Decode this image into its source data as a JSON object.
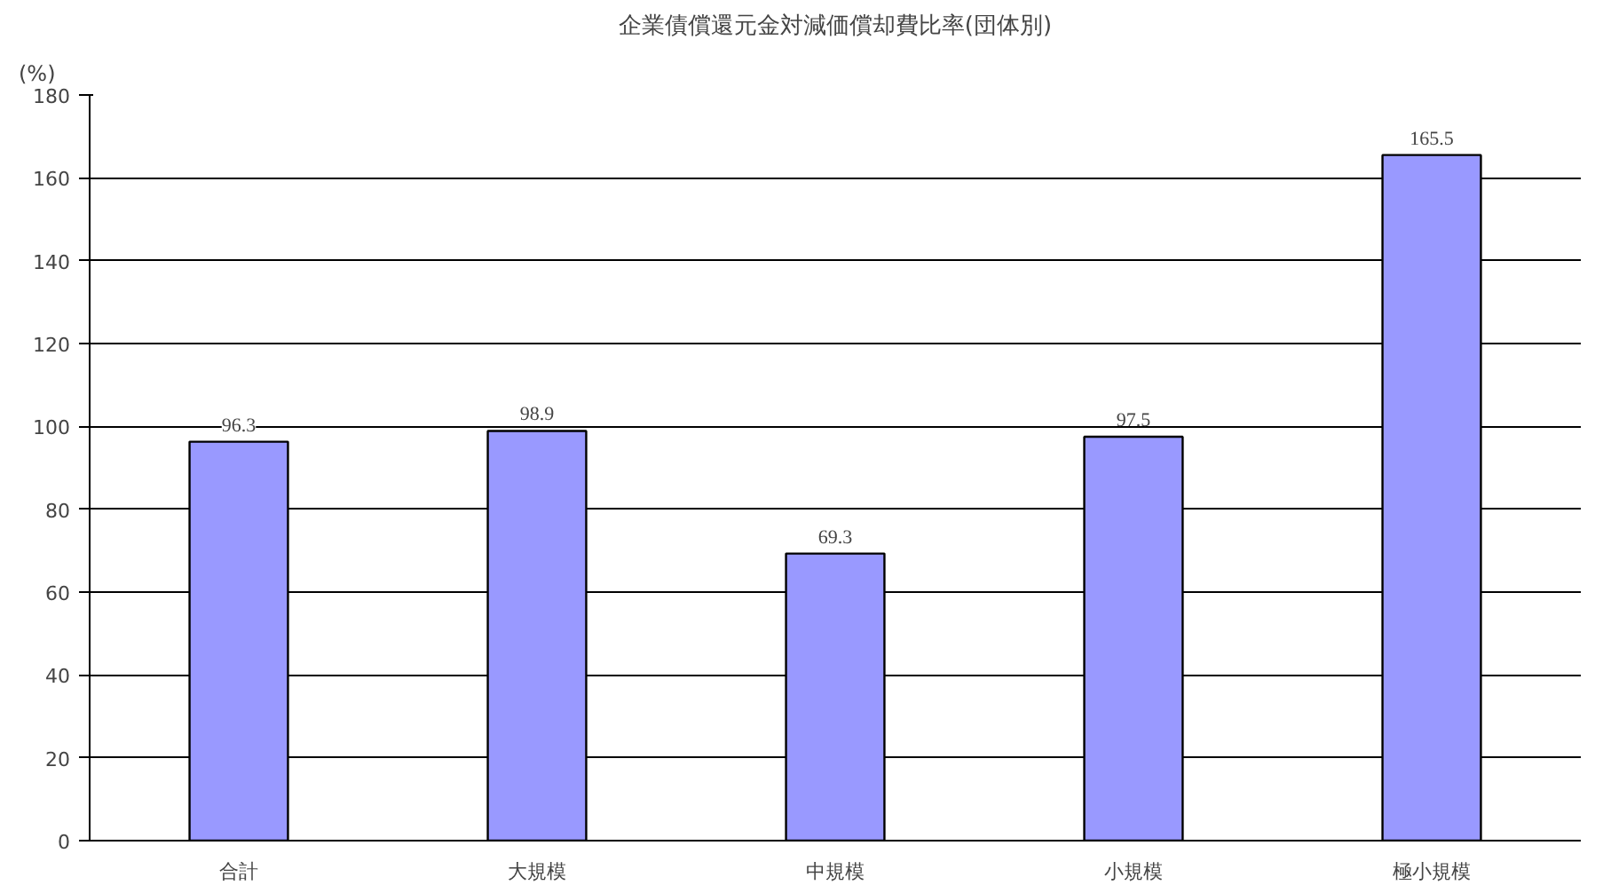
{
  "chart_data": {
    "type": "bar",
    "title": "企業債償還元金対減価償却費比率(団体別)",
    "ylabel": "(%)",
    "categories": [
      "合計",
      "大規模",
      "中規模",
      "小規模",
      "極小規模"
    ],
    "values": [
      96.3,
      98.9,
      69.3,
      97.5,
      165.5
    ],
    "color": "#9999ff",
    "ylim": [
      0,
      180
    ],
    "yticks": [
      0,
      20,
      40,
      60,
      80,
      100,
      120,
      140,
      160,
      180
    ],
    "grid": "y",
    "data_labels": true
  }
}
